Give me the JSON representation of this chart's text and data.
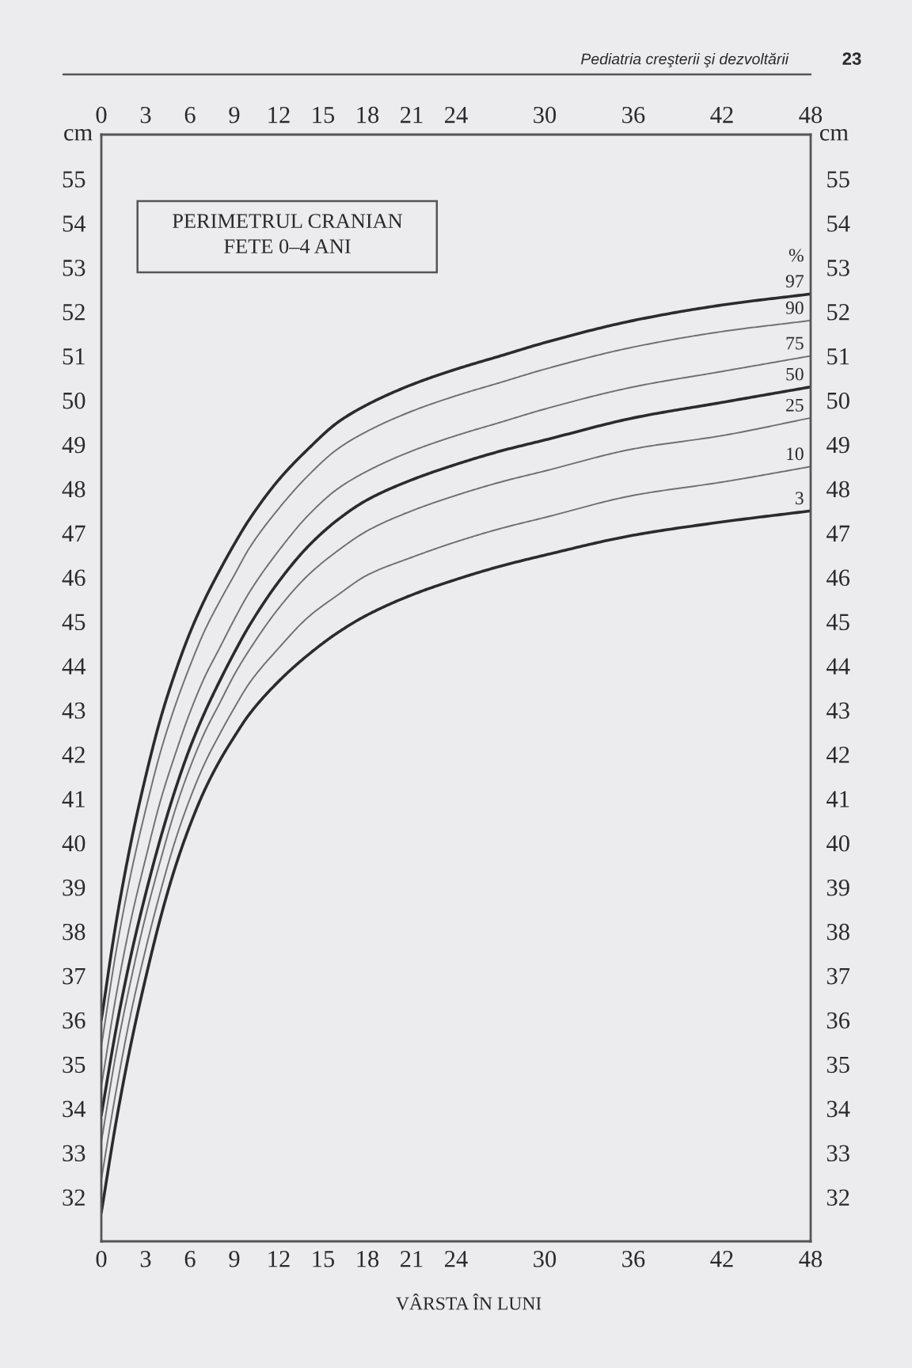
{
  "chart_data": {
    "type": "line",
    "title": "PERIMETRUL CRANIAN",
    "subtitle": "FETE 0–4 ANI",
    "xlabel": "VÂRSTA ÎN LUNI",
    "ylabel": "cm",
    "y2label": "cm",
    "legend_title": "%",
    "annotations": [
      "Pediatria creşterii şi dezvoltării",
      "23"
    ],
    "x": [
      0,
      1,
      2,
      3,
      4,
      5,
      6,
      7,
      8,
      9,
      10,
      12,
      14,
      16,
      18,
      21,
      24,
      27,
      30,
      36,
      42,
      48
    ],
    "xlim": [
      0,
      48
    ],
    "xticks": [
      0,
      3,
      6,
      9,
      12,
      15,
      18,
      21,
      24,
      30,
      36,
      42,
      48
    ],
    "x2lim": [
      0,
      48
    ],
    "x2ticks": [
      0,
      3,
      6,
      9,
      12,
      15,
      18,
      21,
      24,
      30,
      36,
      42,
      48
    ],
    "ylim": [
      31,
      56
    ],
    "yticks": [
      32,
      33,
      34,
      35,
      36,
      37,
      38,
      39,
      40,
      41,
      42,
      43,
      44,
      45,
      46,
      47,
      48,
      49,
      50,
      51,
      52,
      53,
      54,
      55
    ],
    "y2lim": [
      31,
      56
    ],
    "y2ticks": [
      32,
      33,
      34,
      35,
      36,
      37,
      38,
      39,
      40,
      41,
      42,
      43,
      44,
      45,
      46,
      47,
      48,
      49,
      50,
      51,
      52,
      53,
      54,
      55
    ],
    "series": [
      {
        "name": "97",
        "color": "#2b2b2b",
        "values": [
          36.0,
          38.2,
          40.0,
          41.5,
          42.8,
          43.85,
          44.75,
          45.5,
          46.15,
          46.75,
          47.3,
          48.2,
          48.9,
          49.5,
          49.9,
          50.35,
          50.7,
          51.0,
          51.3,
          51.8,
          52.15,
          52.4
        ]
      },
      {
        "name": "90",
        "color": "#707070",
        "values": [
          35.4,
          37.55,
          39.3,
          40.75,
          42.05,
          43.1,
          44.0,
          44.8,
          45.45,
          46.05,
          46.65,
          47.55,
          48.3,
          48.9,
          49.3,
          49.75,
          50.1,
          50.4,
          50.7,
          51.2,
          51.55,
          51.8
        ]
      },
      {
        "name": "75",
        "color": "#707070",
        "values": [
          34.5,
          36.55,
          38.25,
          39.65,
          40.95,
          42.0,
          42.95,
          43.75,
          44.4,
          45.05,
          45.65,
          46.6,
          47.4,
          48.0,
          48.4,
          48.85,
          49.2,
          49.5,
          49.8,
          50.3,
          50.65,
          51.0
        ]
      },
      {
        "name": "50",
        "color": "#2b2b2b",
        "values": [
          33.85,
          35.8,
          37.45,
          38.85,
          40.1,
          41.2,
          42.15,
          42.95,
          43.65,
          44.3,
          44.9,
          45.9,
          46.7,
          47.3,
          47.75,
          48.2,
          48.55,
          48.85,
          49.1,
          49.6,
          49.95,
          50.3
        ]
      },
      {
        "name": "25",
        "color": "#707070",
        "values": [
          33.25,
          35.25,
          36.9,
          38.35,
          39.6,
          40.75,
          41.7,
          42.5,
          43.15,
          43.8,
          44.35,
          45.3,
          46.05,
          46.6,
          47.05,
          47.5,
          47.85,
          48.15,
          48.4,
          48.9,
          49.2,
          49.6
        ]
      },
      {
        "name": "10",
        "color": "#707070",
        "values": [
          32.4,
          34.4,
          36.15,
          37.6,
          38.9,
          40.05,
          41.0,
          41.8,
          42.45,
          43.05,
          43.6,
          44.4,
          45.1,
          45.6,
          46.05,
          46.45,
          46.8,
          47.1,
          47.35,
          47.85,
          48.15,
          48.5
        ]
      },
      {
        "name": "3",
        "color": "#2b2b2b",
        "values": [
          31.65,
          33.7,
          35.45,
          36.95,
          38.3,
          39.45,
          40.4,
          41.2,
          41.85,
          42.4,
          42.9,
          43.65,
          44.25,
          44.75,
          45.15,
          45.6,
          45.95,
          46.25,
          46.5,
          46.95,
          47.25,
          47.5
        ]
      }
    ]
  }
}
